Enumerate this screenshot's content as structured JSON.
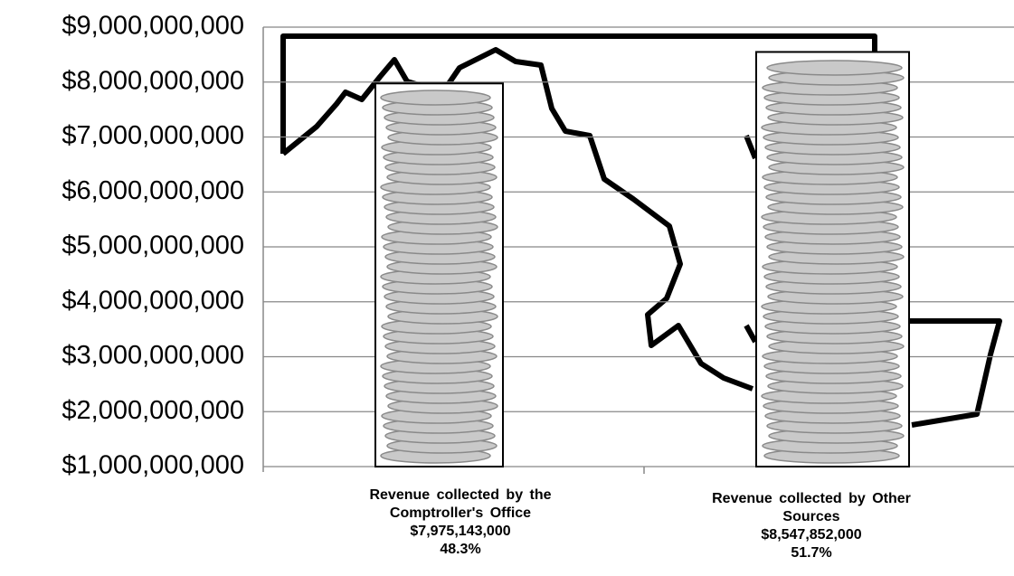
{
  "chart_data": {
    "type": "bar",
    "categories": [
      "Revenue collected by the Comptroller's Office",
      "Revenue collected by Other Sources"
    ],
    "values": [
      7975143000,
      8547852000
    ],
    "value_labels": [
      "$7,975,143,000",
      "$8,547,852,000"
    ],
    "share_labels": [
      "48.3%",
      "51.7%"
    ],
    "ylim": [
      1000000000,
      9000000000
    ],
    "yticks": [
      {
        "value": 1000000000,
        "label": "$1,000,000,000"
      },
      {
        "value": 2000000000,
        "label": "$2,000,000,000"
      },
      {
        "value": 3000000000,
        "label": "$3,000,000,000"
      },
      {
        "value": 4000000000,
        "label": "$4,000,000,000"
      },
      {
        "value": 5000000000,
        "label": "$5,000,000,000"
      },
      {
        "value": 6000000000,
        "label": "$6,000,000,000"
      },
      {
        "value": 7000000000,
        "label": "$7,000,000,000"
      },
      {
        "value": 8000000000,
        "label": "$8,000,000,000"
      },
      {
        "value": 9000000000,
        "label": "$9,000,000,000"
      }
    ],
    "grid": true
  }
}
